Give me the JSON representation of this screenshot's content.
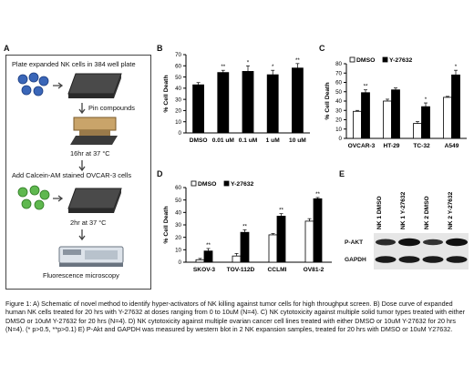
{
  "panels": {
    "a_label": "A",
    "b_label": "B",
    "c_label": "C",
    "d_label": "D",
    "e_label": "E"
  },
  "schematic": {
    "step1": "Plate expanded NK cells in 384 well plate",
    "step2": "Pin compounds",
    "step3": "16hr at 37 °C",
    "step4": "Add Calcein-AM stained OVCAR-3 cells",
    "step5": "2hr at 37 °C",
    "step6": "Fluorescence microscopy"
  },
  "colors": {
    "black_bar": "#000000",
    "white_bar": "#ffffff",
    "schematic_blue": "#3a66b8",
    "schematic_green": "#5fb84f"
  },
  "blot": {
    "lanes": [
      "NK 1 DMSO",
      "NK 1 Y-27632",
      "NK 2 DMSO",
      "NK 2 Y-27632"
    ],
    "row1": "P-AKT",
    "row2": "GAPDH"
  },
  "caption": "Figure 1: A) Schematic of novel method to identify hyper-activators of NK killing against tumor cells for high throughput screen. B) Dose curve of expanded human NK cells treated for 20 hrs with Y-27632 at doses ranging from 0 to 10uM (N=4). C) NK cytotoxicity against multiple solid tumor types treated with either DMSO or 10uM Y-27632 for 20 hrs (N=4). D) NK cytotoxicity against multiple ovarian cancer cell lines treated with either DMSO or 10uM Y-27632 for 20 hrs (N=4). (* p>0.5, **p>0.1) E) P-Akt and GAPDH was measured by western blot in 2 NK expansion samples, treated for 20 hrs with DMSO or 10uM Y27632.",
  "chart_data": [
    {
      "id": "B",
      "type": "bar",
      "ylabel": "% Cell Death",
      "ylim": [
        0,
        70
      ],
      "yticks": [
        0,
        10,
        20,
        30,
        40,
        50,
        60,
        70
      ],
      "categories": [
        "DMSO",
        "0.01 uM",
        "0.1 uM",
        "1 uM",
        "10 uM"
      ],
      "values": [
        43,
        54,
        55,
        52,
        58
      ],
      "errors": [
        2,
        2,
        5,
        4,
        4
      ],
      "sig": [
        "",
        "**",
        "*",
        "*",
        "**"
      ]
    },
    {
      "id": "C",
      "type": "bar",
      "ylabel": "% Cell Death",
      "ylim": [
        0,
        80
      ],
      "yticks": [
        0,
        10,
        20,
        30,
        40,
        50,
        60,
        70,
        80
      ],
      "categories": [
        "OVCAR-3",
        "HT-29",
        "TC-32",
        "A549"
      ],
      "series": [
        {
          "name": "DMSO",
          "values": [
            29,
            40,
            16,
            44
          ],
          "errors": [
            1,
            2,
            2,
            1
          ]
        },
        {
          "name": "Y-27632",
          "values": [
            49,
            52,
            34,
            68
          ],
          "errors": [
            3,
            2,
            4,
            5
          ]
        }
      ],
      "sig": [
        "**",
        "",
        "*",
        "*"
      ],
      "legend": "top-left"
    },
    {
      "id": "D",
      "type": "bar",
      "ylabel": "% Cell Death",
      "ylim": [
        0,
        60
      ],
      "yticks": [
        0,
        10,
        20,
        30,
        40,
        50,
        60
      ],
      "categories": [
        "SKOV-3",
        "TOV-112D",
        "CCLMI",
        "OV81-2"
      ],
      "series": [
        {
          "name": "DMSO",
          "values": [
            2,
            5,
            22,
            33
          ],
          "errors": [
            1,
            2,
            1,
            2
          ]
        },
        {
          "name": "Y-27632",
          "values": [
            9,
            24,
            37,
            51
          ],
          "errors": [
            2,
            2,
            2,
            1
          ]
        }
      ],
      "sig": [
        "**",
        "**",
        "**",
        "**"
      ],
      "legend": "top-left"
    }
  ]
}
